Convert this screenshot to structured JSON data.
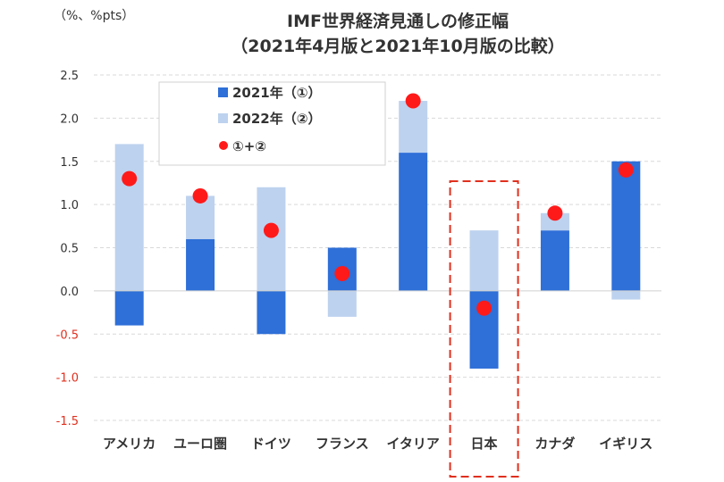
{
  "chart_data": {
    "type": "bar",
    "title": "IMF世界経済見通しの修正幅",
    "subtitle": "（2021年4月版と2021年10月版の比較）",
    "unit_label": "（%、%pts）",
    "categories": [
      "アメリカ",
      "ユーロ圏",
      "ドイツ",
      "フランス",
      "イタリア",
      "日本",
      "カナダ",
      "イギリス"
    ],
    "series": [
      {
        "name": "2021年（①）",
        "type": "bar",
        "color": "#2e6fd8",
        "values": [
          -0.4,
          0.6,
          -0.5,
          0.5,
          1.6,
          -0.9,
          0.7,
          1.5
        ]
      },
      {
        "name": "2022年（②）",
        "type": "bar",
        "color": "#bdd2ee",
        "values": [
          1.7,
          0.5,
          1.2,
          -0.3,
          0.6,
          0.7,
          0.2,
          -0.1
        ]
      },
      {
        "name": "①+②",
        "type": "scatter",
        "color": "#ff1a1a",
        "values": [
          1.3,
          1.1,
          0.7,
          0.2,
          2.2,
          -0.2,
          0.9,
          1.4
        ]
      }
    ],
    "stacked": true,
    "ylim": [
      -1.5,
      2.5
    ],
    "yticks": [
      "2.5",
      "2.0",
      "1.5",
      "1.0",
      "0.5",
      "0.0",
      "-0.5",
      "-1.0",
      "-1.5"
    ],
    "grid": true,
    "legend_position": "top-left",
    "highlight_category": "日本",
    "highlight_color": "#e0301e",
    "negative_tick_color": "#e0301e"
  }
}
